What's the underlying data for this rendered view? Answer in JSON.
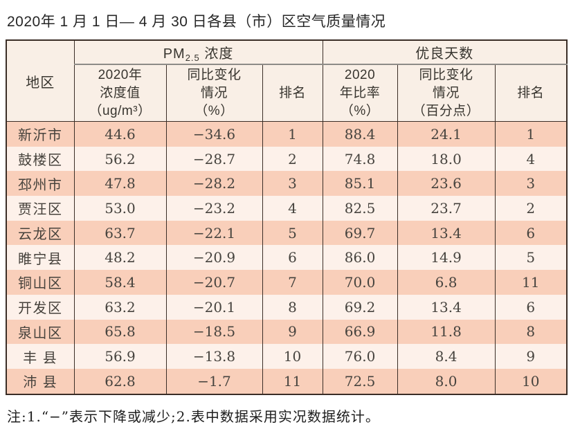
{
  "page": {
    "title": "2020年 1 月 1 日— 4 月 30 日各县（市）区空气质量情况",
    "note": "注:1.“−”表示下降或减少;2.表中数据采用实况数据统计。"
  },
  "colors": {
    "row_odd": "#f9cfba",
    "row_even": "#fdf1ea",
    "header_bg": "#f9efe6",
    "border_dark": "#3a2d26",
    "group_underline": "#8d8b87"
  },
  "table": {
    "region_header": "地区",
    "pm25_group": {
      "base": "PM",
      "sub": "2.5",
      "rest": " 浓度"
    },
    "good_days_group": "优良天数",
    "sub_headers": [
      "2020年\n浓度值\n（ug/m³）",
      "同比变化\n情况\n（%）",
      "排名",
      "2020\n年比率\n（%）",
      "同比变化\n情况\n（百分点）",
      "排名"
    ],
    "rows": [
      {
        "region": "新沂市",
        "pm_value": "44.6",
        "pm_change": "−34.6",
        "pm_rank": "1",
        "ratio": "88.4",
        "ratio_change": "24.1",
        "ratio_rank": "1"
      },
      {
        "region": "鼓楼区",
        "pm_value": "56.2",
        "pm_change": "−28.7",
        "pm_rank": "2",
        "ratio": "74.8",
        "ratio_change": "18.0",
        "ratio_rank": "4"
      },
      {
        "region": "邳州市",
        "pm_value": "47.8",
        "pm_change": "−28.2",
        "pm_rank": "3",
        "ratio": "85.1",
        "ratio_change": "23.6",
        "ratio_rank": "3"
      },
      {
        "region": "贾汪区",
        "pm_value": "53.0",
        "pm_change": "−23.2",
        "pm_rank": "4",
        "ratio": "82.5",
        "ratio_change": "23.7",
        "ratio_rank": "2"
      },
      {
        "region": "云龙区",
        "pm_value": "63.7",
        "pm_change": "−22.1",
        "pm_rank": "5",
        "ratio": "69.7",
        "ratio_change": "13.4",
        "ratio_rank": "6"
      },
      {
        "region": "睢宁县",
        "pm_value": "48.2",
        "pm_change": "−20.9",
        "pm_rank": "6",
        "ratio": "86.0",
        "ratio_change": "14.9",
        "ratio_rank": "5"
      },
      {
        "region": "铜山区",
        "pm_value": "58.4",
        "pm_change": "−20.7",
        "pm_rank": "7",
        "ratio": "70.0",
        "ratio_change": "6.8",
        "ratio_rank": "11"
      },
      {
        "region": "开发区",
        "pm_value": "63.2",
        "pm_change": "−20.1",
        "pm_rank": "8",
        "ratio": "69.2",
        "ratio_change": "13.4",
        "ratio_rank": "6"
      },
      {
        "region": "泉山区",
        "pm_value": "65.8",
        "pm_change": "−18.5",
        "pm_rank": "9",
        "ratio": "66.9",
        "ratio_change": "11.8",
        "ratio_rank": "8"
      },
      {
        "region": "丰 县",
        "pm_value": "56.9",
        "pm_change": "−13.8",
        "pm_rank": "10",
        "ratio": "76.0",
        "ratio_change": "8.4",
        "ratio_rank": "9"
      },
      {
        "region": "沛 县",
        "pm_value": "62.8",
        "pm_change": "−1.7",
        "pm_rank": "11",
        "ratio": "72.5",
        "ratio_change": "8.0",
        "ratio_rank": "10"
      }
    ]
  }
}
